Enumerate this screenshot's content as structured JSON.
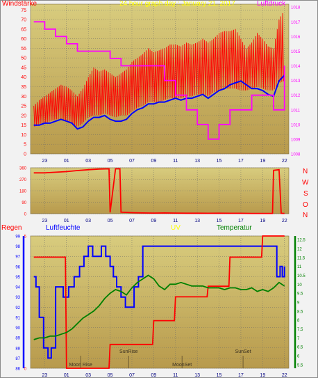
{
  "header": {
    "left_label": "Windstärke",
    "title": "24 hour graph day : January 21, 2017",
    "right_label": "Luftdruck"
  },
  "compass": [
    "N",
    "W",
    "S",
    "O",
    "N"
  ],
  "lower_labels": {
    "regen": "Regen",
    "luftfeuchte": "Luftfeuchte",
    "uv": "UV",
    "temperatur": "Temperatur"
  },
  "events": {
    "moonrise": "Moon Rise",
    "sunrise": "SunRise",
    "moonset": "MoonSet",
    "sunset": "SunSet"
  },
  "colors": {
    "red": "#ff0000",
    "blue": "#0000ff",
    "green": "#008000",
    "magenta": "#ff00ff",
    "yellow": "#ffff00",
    "plot_top": "#d8cc7e",
    "plot_bottom": "#b89a4c"
  },
  "chart_data": [
    {
      "type": "line",
      "title": "24 hour graph day : January 21, 2017",
      "x_ticks": [
        "23",
        "01",
        "03",
        "05",
        "07",
        "09",
        "11",
        "13",
        "15",
        "17",
        "19",
        "22"
      ],
      "left_axis": {
        "label": "Windstärke",
        "ticks": [
          0,
          5,
          10,
          15,
          20,
          25,
          30,
          35,
          40,
          45,
          50,
          55,
          60,
          65,
          70,
          75
        ],
        "ylim": [
          0,
          78
        ]
      },
      "right_axis": {
        "label": "Luftdruck",
        "ticks": [
          1008,
          1009,
          1010,
          1011,
          1012,
          1013,
          1014,
          1015,
          1016,
          1017,
          1018
        ],
        "ylim": [
          1008,
          1018.2
        ]
      },
      "series": [
        {
          "color": "#ff0000",
          "axis": "left",
          "kind": "gust",
          "x": [
            0,
            0.5,
            1,
            1.5,
            2,
            2.5,
            3,
            3.5,
            4,
            4.5,
            5,
            5.5,
            6,
            6.5,
            7,
            7.5,
            8,
            8.5,
            9,
            9.5,
            10,
            10.5,
            11,
            11.5,
            12,
            12.5,
            13,
            13.5,
            14,
            14.5,
            15,
            15.5,
            16,
            16.5,
            17,
            17.5,
            18,
            18.5,
            19,
            19.5,
            20,
            20.5,
            21,
            21.5,
            22,
            22.5,
            23
          ],
          "low": [
            14,
            15,
            16,
            17,
            18,
            18,
            17,
            16,
            14,
            16,
            19,
            20,
            20,
            21,
            20,
            19,
            20,
            20,
            22,
            24,
            25,
            27,
            27,
            27,
            28,
            29,
            29,
            29,
            30,
            30,
            31,
            31,
            30,
            32,
            33,
            34,
            34,
            34,
            33,
            33,
            34,
            35,
            34,
            33,
            33,
            37,
            38
          ],
          "high": [
            25,
            28,
            30,
            32,
            34,
            36,
            35,
            33,
            30,
            34,
            40,
            45,
            43,
            44,
            42,
            40,
            42,
            44,
            48,
            50,
            52,
            55,
            53,
            54,
            55,
            57,
            57,
            56,
            58,
            57,
            58,
            60,
            58,
            60,
            63,
            64,
            64,
            65,
            60,
            55,
            58,
            63,
            60,
            56,
            55,
            70,
            75
          ]
        },
        {
          "color": "#0000ff",
          "axis": "left",
          "kind": "average",
          "x": [
            0,
            0.5,
            1,
            1.5,
            2,
            2.5,
            3,
            3.5,
            4,
            4.5,
            5,
            5.5,
            6,
            6.5,
            7,
            7.5,
            8,
            8.5,
            9,
            9.5,
            10,
            10.5,
            11,
            11.5,
            12,
            12.5,
            13,
            13.5,
            14,
            14.5,
            15,
            15.5,
            16,
            16.5,
            17,
            17.5,
            18,
            18.5,
            19,
            19.5,
            20,
            20.5,
            21,
            21.5,
            22,
            22.5,
            23
          ],
          "y": [
            15,
            15,
            16,
            16,
            17,
            18,
            17,
            16,
            13,
            14,
            17,
            19,
            19,
            20,
            18,
            17,
            17,
            18,
            21,
            23,
            24,
            26,
            26,
            27,
            27,
            28,
            29,
            28,
            29,
            29,
            30,
            31,
            29,
            31,
            33,
            34,
            36,
            37,
            38,
            36,
            34,
            34,
            33,
            31,
            30,
            38,
            41
          ]
        },
        {
          "color": "#ff00ff",
          "axis": "right",
          "kind": "pressure",
          "x": [
            0,
            1,
            2,
            3,
            4,
            5,
            6,
            7,
            8,
            9,
            10,
            11,
            12,
            13,
            14,
            15,
            16,
            17,
            18,
            19,
            20,
            21,
            22,
            23
          ],
          "y": [
            1017,
            1016.5,
            1016,
            1015.5,
            1015,
            1015,
            1015,
            1014.5,
            1014,
            1014,
            1014,
            1014,
            1013,
            1012,
            1011,
            1010,
            1009,
            1010,
            1011,
            1011,
            1012,
            1012,
            1011,
            1014
          ]
        }
      ]
    },
    {
      "type": "line",
      "title": "",
      "x_ticks": [
        "23",
        "01",
        "03",
        "05",
        "07",
        "09",
        "11",
        "13",
        "15",
        "17",
        "19",
        "22"
      ],
      "left_axis": {
        "label": "",
        "ticks": [
          0,
          90,
          180,
          270,
          360
        ],
        "ylim": [
          0,
          360
        ]
      },
      "right_axis_labels": [
        "N",
        "W",
        "S",
        "O",
        "N"
      ],
      "series": [
        {
          "color": "#ff0000",
          "kind": "wind direction",
          "x": [
            0,
            1,
            2,
            3,
            4,
            5,
            6,
            6.9,
            7,
            7.5,
            7.9,
            8,
            9,
            10,
            11,
            12,
            13,
            14,
            15,
            16,
            17,
            18,
            19,
            20,
            21,
            21.9,
            22,
            22.5,
            22.7,
            23
          ],
          "y": [
            320,
            320,
            325,
            330,
            338,
            345,
            350,
            352,
            10,
            352,
            352,
            12,
            8,
            6,
            5,
            6,
            5,
            4,
            4,
            3,
            4,
            3,
            3,
            2,
            2,
            2,
            340,
            345,
            3,
            2
          ]
        }
      ]
    },
    {
      "type": "line",
      "title": "",
      "x_ticks": [
        "23",
        "01",
        "03",
        "05",
        "07",
        "09",
        "11",
        "13",
        "15",
        "17",
        "19",
        "22"
      ],
      "left_axes": {
        "regen": {
          "label": "Regen",
          "ticks": [
            0,
            5
          ],
          "ylim": [
            0,
            5
          ]
        },
        "luftfeuchte": {
          "label": "Luftfeuchte",
          "ticks": [
            86,
            87,
            88,
            89,
            90,
            91,
            92,
            93,
            94,
            95,
            96,
            97,
            98,
            99
          ],
          "ylim": [
            86,
            99
          ]
        }
      },
      "right_axis": {
        "label": "Temperatur",
        "ticks": [
          5.5,
          6,
          6.5,
          7,
          7.5,
          8,
          8.5,
          9,
          9.5,
          10,
          10.5,
          11,
          11.5,
          12,
          12.5
        ],
        "ylim": [
          5.3,
          12.7
        ]
      },
      "series": [
        {
          "color": "#0000ff",
          "axis": "luftfeuchte",
          "kind": "humidity",
          "x": [
            0,
            0.2,
            0.5,
            0.9,
            1.3,
            1.6,
            2,
            2.3,
            2.7,
            3.2,
            3.7,
            4.2,
            4.6,
            5,
            5.4,
            5.8,
            6.2,
            6.6,
            7,
            7.3,
            7.6,
            8,
            8.4,
            8.8,
            9.2,
            9.6,
            10,
            10.5,
            11,
            11.5,
            12,
            12.5,
            13,
            13.5,
            14,
            14.5,
            15,
            15.5,
            16,
            16.5,
            17,
            17.5,
            18,
            18.5,
            19,
            19.5,
            20,
            20.5,
            21,
            21.5,
            22,
            22.3,
            22.6,
            22.8,
            23
          ],
          "y": [
            95,
            94,
            91,
            88,
            87,
            88,
            94,
            94,
            93,
            94,
            95,
            96,
            97,
            98,
            97,
            97,
            98,
            97,
            96,
            95,
            94,
            93,
            92,
            92,
            94,
            95,
            98,
            98,
            98,
            98,
            98,
            98,
            98,
            98,
            98,
            98,
            98,
            98,
            98,
            98,
            98,
            98,
            98,
            98,
            98,
            98,
            98,
            98,
            98,
            98,
            98,
            95,
            96,
            95,
            96
          ]
        },
        {
          "color": "#ff0000",
          "axis": "regen",
          "kind": "rain",
          "x": [
            0,
            2.9,
            3,
            6.9,
            7,
            10.9,
            11,
            12.9,
            13,
            15.9,
            16,
            17.9,
            18,
            20.9,
            21,
            23
          ],
          "y": [
            4.2,
            4.2,
            0,
            0,
            0.9,
            0.9,
            1.8,
            1.8,
            2.7,
            2.7,
            3.1,
            3.1,
            4.2,
            4.2,
            5,
            5
          ]
        },
        {
          "color": "#008000",
          "axis": "right",
          "kind": "temperature",
          "x": [
            0,
            0.5,
            1,
            1.5,
            2,
            2.5,
            3,
            3.5,
            4,
            4.5,
            5,
            5.5,
            6,
            6.5,
            7,
            7.5,
            8,
            8.5,
            9,
            9.5,
            10,
            10.5,
            11,
            11.5,
            12,
            12.5,
            13,
            13.5,
            14,
            14.5,
            15,
            15.5,
            16,
            16.5,
            17,
            17.5,
            18,
            18.5,
            19,
            19.5,
            20,
            20.5,
            21,
            21.5,
            22,
            22.5,
            23
          ],
          "y": [
            6.9,
            7.0,
            7.0,
            7.1,
            7.1,
            7.2,
            7.3,
            7.5,
            7.8,
            8.1,
            8.3,
            8.5,
            8.8,
            9.2,
            9.5,
            9.7,
            9.6,
            9.4,
            9.8,
            10.1,
            10.3,
            10.5,
            10.3,
            9.9,
            9.7,
            10.0,
            10.0,
            10.1,
            10.0,
            9.9,
            9.9,
            9.9,
            9.8,
            9.8,
            9.8,
            9.7,
            9.8,
            9.8,
            9.7,
            9.7,
            9.8,
            9.6,
            9.7,
            9.6,
            9.8,
            10.1,
            9.9
          ]
        }
      ],
      "events": [
        {
          "label": "Moon Rise",
          "x": 4.3
        },
        {
          "label": "SunRise",
          "x": 8.7
        },
        {
          "label": "MoonSet",
          "x": 13.6
        },
        {
          "label": "SunSet",
          "x": 19.2
        }
      ]
    }
  ]
}
